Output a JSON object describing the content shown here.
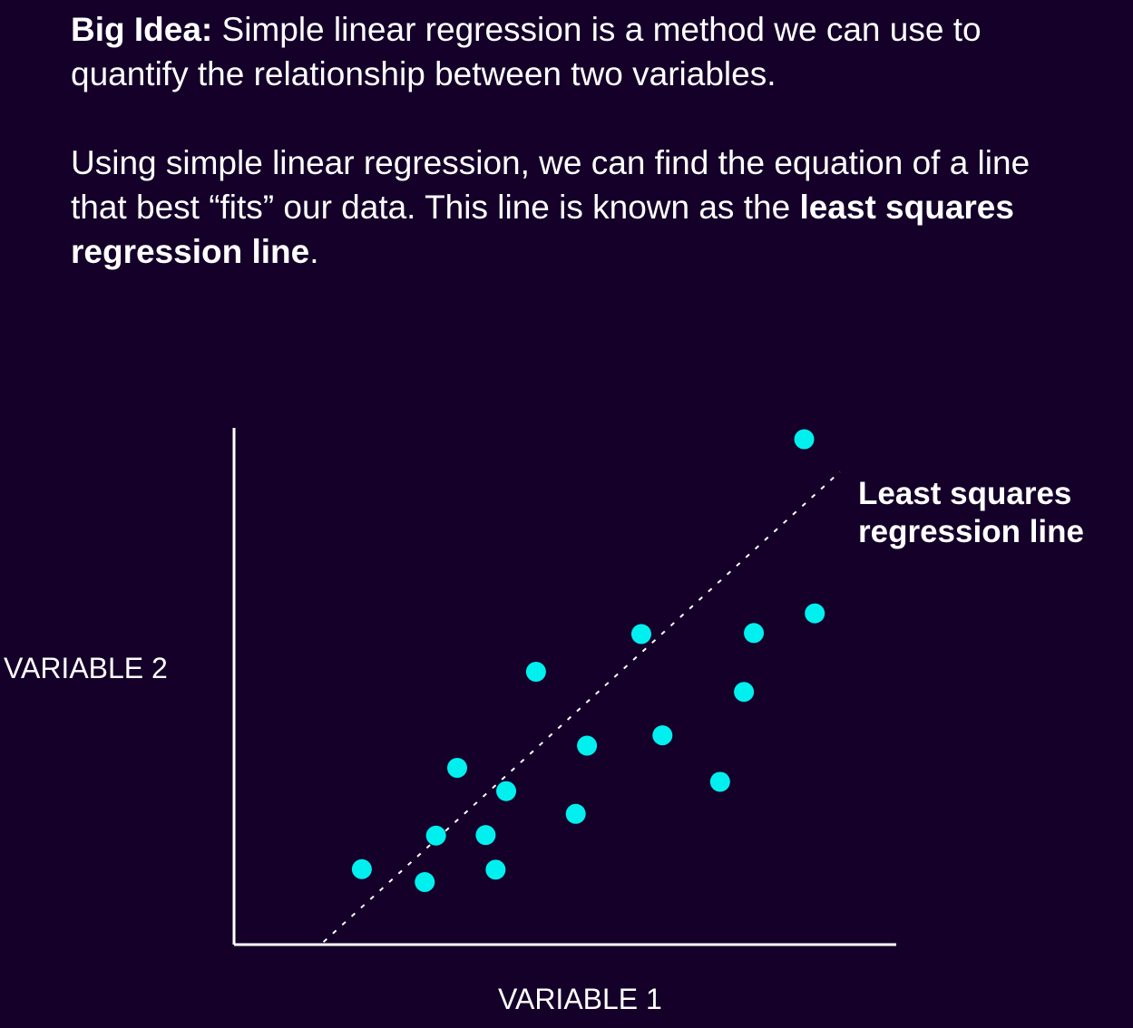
{
  "intro": {
    "big_idea_label": "Big Idea:",
    "big_idea_text": " Simple linear regression is a method we can use to quantify the relationship between two variables.",
    "para2_text": "Using simple linear regression, we can find the equation of a line that best “fits” our data. This line is known as the ",
    "para2_bold": "least squares regression line",
    "para2_end": "."
  },
  "chart_data": {
    "type": "scatter",
    "title": "",
    "xlabel": "VARIABLE 1",
    "ylabel": "VARIABLE 2",
    "xlim": [
      0,
      100
    ],
    "ylim": [
      0,
      100
    ],
    "grid": false,
    "annotation": "Least squares regression line",
    "points": [
      {
        "x": 19.3,
        "y": 14.6
      },
      {
        "x": 28.8,
        "y": 12.1
      },
      {
        "x": 30.5,
        "y": 21.1
      },
      {
        "x": 33.7,
        "y": 34.2
      },
      {
        "x": 38.0,
        "y": 21.2
      },
      {
        "x": 39.5,
        "y": 14.5
      },
      {
        "x": 41.1,
        "y": 29.7
      },
      {
        "x": 45.6,
        "y": 52.8
      },
      {
        "x": 51.6,
        "y": 25.3
      },
      {
        "x": 53.3,
        "y": 38.5
      },
      {
        "x": 61.5,
        "y": 60.1
      },
      {
        "x": 64.7,
        "y": 40.5
      },
      {
        "x": 73.4,
        "y": 31.5
      },
      {
        "x": 77.0,
        "y": 48.9
      },
      {
        "x": 78.5,
        "y": 60.3
      },
      {
        "x": 86.1,
        "y": 97.8
      },
      {
        "x": 87.7,
        "y": 64.1
      }
    ],
    "regression_line": {
      "x": [
        13.5,
        91.5
      ],
      "y": [
        0.5,
        91.5
      ]
    },
    "colors": {
      "background": "#140029",
      "points": "#00f0f0",
      "axes": "#ffffff",
      "line": "#ffffff"
    }
  }
}
